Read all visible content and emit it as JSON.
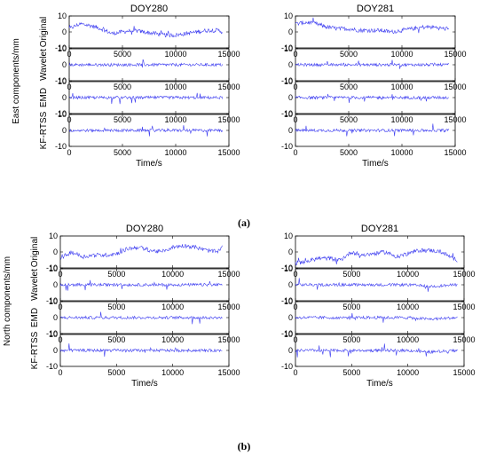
{
  "colors": {
    "signal": "#3b3bf0",
    "axes": "#000000",
    "background": "#ffffff"
  },
  "chart_data": [
    {
      "type": "line",
      "caption": "(a)",
      "ylabel": "East components/mm",
      "xlabel": "Time/s",
      "columns": [
        "DOY280",
        "DOY281"
      ],
      "rows": [
        "Original",
        "Wavelet",
        "EMD",
        "KF-RTSS"
      ],
      "xlim": [
        0,
        15000
      ],
      "xticks": [
        0,
        5000,
        10000,
        15000
      ],
      "ylim": [
        -10,
        10
      ],
      "yticks": [
        -10,
        0,
        10
      ],
      "x_end": 14400,
      "grid": false,
      "series": [
        {
          "row": "Original",
          "column": "DOY280",
          "x": [
            0,
            1000,
            2000,
            3000,
            4000,
            5000,
            6000,
            7000,
            8000,
            9000,
            10000,
            11000,
            12000,
            13000,
            14000,
            14400
          ],
          "y": [
            2,
            5,
            4,
            2,
            -1,
            0,
            1,
            0,
            -1,
            -2,
            -2,
            -1,
            0,
            1,
            1,
            0
          ]
        },
        {
          "row": "Original",
          "column": "DOY281",
          "x": [
            0,
            1000,
            2000,
            3000,
            4000,
            5000,
            6000,
            7000,
            8000,
            9000,
            10000,
            11000,
            12000,
            13000,
            14000,
            14400
          ],
          "y": [
            5,
            6,
            5,
            3,
            2,
            2,
            1,
            1,
            1,
            0,
            1,
            2,
            3,
            3,
            2,
            2
          ]
        },
        {
          "row": "Wavelet",
          "column": "DOY280",
          "x": [
            0,
            2000,
            4000,
            6000,
            8000,
            10000,
            12000,
            14400
          ],
          "y": [
            0,
            0,
            0,
            0,
            0,
            0,
            0,
            0
          ]
        },
        {
          "row": "Wavelet",
          "column": "DOY281",
          "x": [
            0,
            2000,
            4000,
            6000,
            8000,
            10000,
            12000,
            14400
          ],
          "y": [
            0,
            0,
            0,
            0,
            0,
            0,
            0,
            0
          ]
        },
        {
          "row": "EMD",
          "column": "DOY280",
          "x": [
            0,
            2000,
            4000,
            6000,
            8000,
            10000,
            12000,
            14400
          ],
          "y": [
            0,
            0,
            0,
            0,
            0,
            0,
            0,
            0
          ]
        },
        {
          "row": "EMD",
          "column": "DOY281",
          "x": [
            0,
            2000,
            4000,
            6000,
            8000,
            10000,
            12000,
            14400
          ],
          "y": [
            0,
            0,
            0,
            0,
            0,
            0,
            0,
            0
          ]
        },
        {
          "row": "KF-RTSS",
          "column": "DOY280",
          "x": [
            0,
            2000,
            4000,
            6000,
            8000,
            10000,
            12000,
            14400
          ],
          "y": [
            0,
            0,
            0,
            0,
            0,
            0,
            0,
            0
          ]
        },
        {
          "row": "KF-RTSS",
          "column": "DOY281",
          "x": [
            0,
            2000,
            4000,
            6000,
            8000,
            10000,
            12000,
            14400
          ],
          "y": [
            0,
            0,
            0,
            0,
            0,
            0,
            0,
            0
          ]
        }
      ]
    },
    {
      "type": "line",
      "caption": "(b)",
      "ylabel": "North components/mm",
      "xlabel": "Time/s",
      "columns": [
        "DOY280",
        "DOY281"
      ],
      "rows": [
        "Original",
        "Wavelet",
        "EMD",
        "KF-RTSS"
      ],
      "xlim": [
        0,
        15000
      ],
      "xticks": [
        0,
        5000,
        10000,
        15000
      ],
      "ylim": [
        -10,
        10
      ],
      "yticks": [
        -10,
        0,
        10
      ],
      "x_end": 14400,
      "grid": false,
      "series": [
        {
          "row": "Original",
          "column": "DOY280",
          "x": [
            0,
            1000,
            2000,
            3000,
            4000,
            5000,
            6000,
            7000,
            8000,
            9000,
            10000,
            11000,
            12000,
            13000,
            14000,
            14400
          ],
          "y": [
            -4,
            0,
            -3,
            -2,
            -2,
            -1,
            2,
            3,
            1,
            0,
            3,
            4,
            3,
            1,
            0,
            3
          ]
        },
        {
          "row": "Original",
          "column": "DOY281",
          "x": [
            0,
            1000,
            2000,
            3000,
            4000,
            5000,
            6000,
            7000,
            8000,
            9000,
            10000,
            11000,
            12000,
            13000,
            14000,
            14400
          ],
          "y": [
            -7,
            -6,
            -4,
            -4,
            -5,
            0,
            -2,
            -1,
            0,
            -3,
            -1,
            1,
            1,
            0,
            -4,
            -5
          ]
        },
        {
          "row": "Wavelet",
          "column": "DOY280",
          "x": [
            0,
            2000,
            4000,
            6000,
            8000,
            10000,
            12000,
            14400
          ],
          "y": [
            0,
            0,
            0,
            0,
            0,
            0,
            0,
            0
          ]
        },
        {
          "row": "Wavelet",
          "column": "DOY281",
          "x": [
            0,
            2000,
            4000,
            6000,
            8000,
            10000,
            12000,
            14400
          ],
          "y": [
            0,
            0,
            0,
            0,
            0,
            0,
            -1,
            0
          ]
        },
        {
          "row": "EMD",
          "column": "DOY280",
          "x": [
            0,
            2000,
            4000,
            6000,
            8000,
            10000,
            12000,
            14400
          ],
          "y": [
            0,
            0,
            0,
            0,
            0,
            0,
            0,
            0
          ]
        },
        {
          "row": "EMD",
          "column": "DOY281",
          "x": [
            0,
            2000,
            4000,
            6000,
            8000,
            10000,
            12000,
            14400
          ],
          "y": [
            0,
            0,
            0,
            0,
            0,
            0,
            -1,
            0
          ]
        },
        {
          "row": "KF-RTSS",
          "column": "DOY280",
          "x": [
            0,
            2000,
            4000,
            6000,
            8000,
            10000,
            12000,
            14400
          ],
          "y": [
            0,
            0,
            0,
            0,
            0,
            0,
            0,
            0
          ]
        },
        {
          "row": "KF-RTSS",
          "column": "DOY281",
          "x": [
            0,
            2000,
            4000,
            6000,
            8000,
            10000,
            12000,
            14400
          ],
          "y": [
            0,
            0,
            0,
            0,
            0,
            0,
            -1,
            0
          ]
        }
      ]
    }
  ]
}
